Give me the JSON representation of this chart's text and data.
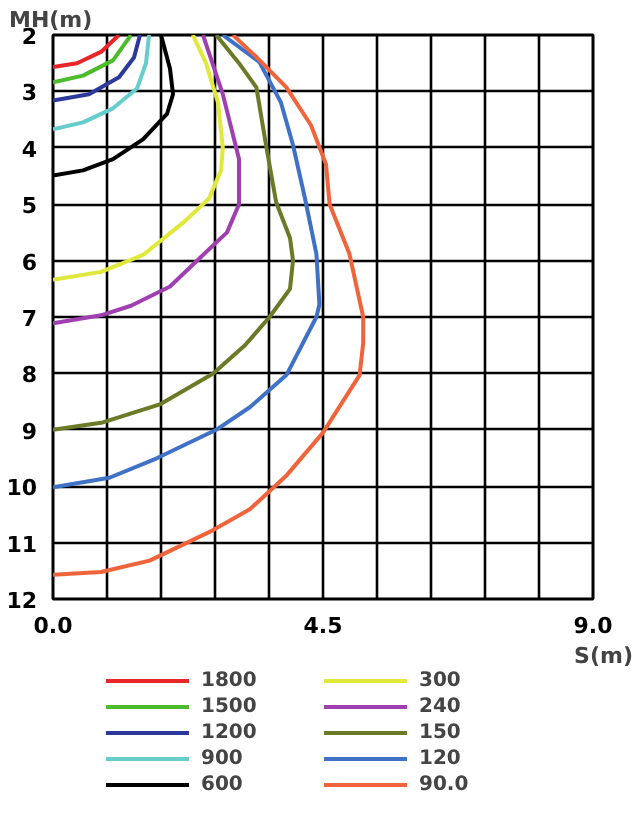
{
  "chart_data": {
    "type": "line",
    "xlabel": "S(m)",
    "ylabel": "MH(m)",
    "xlim": [
      0,
      9
    ],
    "ylim": [
      12,
      2
    ],
    "xticks": [
      {
        "value": 0,
        "label": "0.0"
      },
      {
        "value": 0.9,
        "label": null
      },
      {
        "value": 1.8,
        "label": null
      },
      {
        "value": 2.7,
        "label": null
      },
      {
        "value": 3.6,
        "label": null
      },
      {
        "value": 4.5,
        "label": "4.5"
      },
      {
        "value": 5.4,
        "label": null
      },
      {
        "value": 6.3,
        "label": null
      },
      {
        "value": 7.2,
        "label": null
      },
      {
        "value": 8.1,
        "label": null
      },
      {
        "value": 9,
        "label": "9.0"
      }
    ],
    "yticks": [
      2,
      3,
      4,
      5,
      6,
      7,
      8,
      9,
      10,
      11,
      12
    ],
    "grid": true,
    "legend": "bottom",
    "marker": "none",
    "line_style": "solid",
    "series": [
      {
        "name": "1800",
        "color": "#e8262a",
        "x": [
          0,
          0.4,
          0.8,
          1.1
        ],
        "values": [
          2.57,
          2.5,
          2.3,
          2.0
        ]
      },
      {
        "name": "1500",
        "color": "#4cbb2c",
        "x": [
          0,
          0.5,
          1.0,
          1.3
        ],
        "values": [
          2.84,
          2.72,
          2.45,
          2.0
        ]
      },
      {
        "name": "1200",
        "color": "#2b3a9a",
        "x": [
          0,
          0.6,
          1.1,
          1.35,
          1.45
        ],
        "values": [
          3.16,
          3.05,
          2.75,
          2.4,
          2.0
        ]
      },
      {
        "name": "900",
        "color": "#66cccc",
        "x": [
          0,
          0.5,
          1.0,
          1.4,
          1.55,
          1.6
        ],
        "values": [
          3.67,
          3.55,
          3.3,
          2.95,
          2.5,
          2.0
        ]
      },
      {
        "name": "600",
        "color": "#000000",
        "x": [
          0,
          0.5,
          1.0,
          1.5,
          1.9,
          2.0,
          1.95,
          1.8
        ],
        "values": [
          4.49,
          4.4,
          4.2,
          3.85,
          3.4,
          3.05,
          2.6,
          2.0
        ]
      },
      {
        "name": "300",
        "color": "#e0e83a",
        "x": [
          2.33,
          2.55,
          2.75,
          2.83,
          2.8,
          2.6,
          2.2,
          1.5,
          0.8,
          0
        ],
        "values": [
          2,
          2.5,
          3.2,
          4.0,
          4.4,
          4.9,
          5.3,
          5.9,
          6.2,
          6.34
        ]
      },
      {
        "name": "240",
        "color": "#a040b0",
        "x": [
          2.5,
          2.83,
          3.1,
          3.1,
          2.9,
          2.5,
          1.95,
          1.3,
          0.8,
          0
        ],
        "values": [
          2,
          3.05,
          4.2,
          5.0,
          5.5,
          5.9,
          6.46,
          6.8,
          6.97,
          7.11
        ]
      },
      {
        "name": "150",
        "color": "#6b7a26",
        "x": [
          2.72,
          3.1,
          3.39,
          3.55,
          3.72,
          3.95,
          4.0,
          3.95,
          3.61,
          3.2,
          2.67,
          1.78,
          0.83,
          0
        ],
        "values": [
          2,
          2.5,
          2.93,
          3.95,
          4.97,
          5.6,
          6.0,
          6.5,
          7.0,
          7.5,
          8.0,
          8.55,
          8.87,
          9.0
        ]
      },
      {
        "name": "120",
        "color": "#3f72c6",
        "x": [
          2.83,
          3.44,
          3.8,
          4.0,
          4.2,
          4.39,
          4.44,
          4.39,
          3.89,
          3.28,
          2.72,
          1.72,
          0.94,
          0
        ],
        "values": [
          2,
          2.48,
          3.2,
          3.95,
          4.9,
          5.88,
          6.78,
          7.0,
          8.03,
          8.6,
          9.0,
          9.51,
          9.85,
          10.02
        ]
      },
      {
        "name": "90.0",
        "color": "#f0643c",
        "x": [
          3.0,
          3.4,
          3.89,
          4.3,
          4.55,
          4.61,
          4.94,
          5.17,
          5.17,
          5.11,
          4.5,
          3.9,
          3.28,
          2.61,
          1.61,
          0.8,
          0
        ],
        "values": [
          2,
          2.4,
          2.93,
          3.6,
          4.29,
          5.0,
          5.88,
          7.0,
          7.46,
          8.03,
          9.05,
          9.8,
          10.41,
          10.81,
          11.32,
          11.52,
          11.57
        ]
      }
    ]
  }
}
